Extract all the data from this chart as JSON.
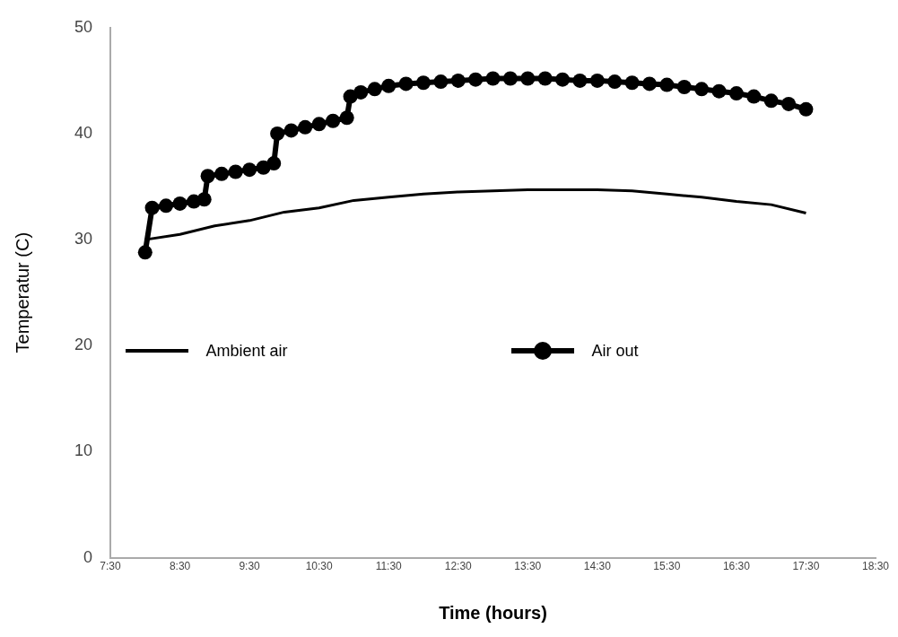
{
  "chart_data": {
    "type": "line",
    "xlabel": "Time (hours)",
    "ylabel": "Temperatur (C)",
    "xlim": [
      7.5,
      18.5
    ],
    "ylim": [
      0,
      50
    ],
    "xticks": [
      {
        "value": 7.5,
        "label": "7:30"
      },
      {
        "value": 8.5,
        "label": "8:30"
      },
      {
        "value": 9.5,
        "label": "9:30"
      },
      {
        "value": 10.5,
        "label": "10:30"
      },
      {
        "value": 11.5,
        "label": "11:30"
      },
      {
        "value": 12.5,
        "label": "12:30"
      },
      {
        "value": 13.5,
        "label": "13:30"
      },
      {
        "value": 14.5,
        "label": "14:30"
      },
      {
        "value": 15.5,
        "label": "15:30"
      },
      {
        "value": 16.5,
        "label": "16:30"
      },
      {
        "value": 17.5,
        "label": "17:30"
      },
      {
        "value": 18.5,
        "label": "18:30"
      }
    ],
    "yticks": [
      0,
      10,
      20,
      30,
      40,
      50
    ],
    "grid": false,
    "legend": "center",
    "series": [
      {
        "name": "Ambient air",
        "color": "#000000",
        "marker": "none",
        "x": [
          8.0,
          8.5,
          9.0,
          9.5,
          10.0,
          10.5,
          11.0,
          11.5,
          12.0,
          12.5,
          13.0,
          13.5,
          14.0,
          14.5,
          15.0,
          15.5,
          16.0,
          16.5,
          17.0,
          17.5
        ],
        "values": [
          30.0,
          30.5,
          31.3,
          31.8,
          32.6,
          33.0,
          33.7,
          34.0,
          34.3,
          34.5,
          34.6,
          34.7,
          34.7,
          34.7,
          34.6,
          34.3,
          34.0,
          33.6,
          33.3,
          32.5
        ]
      },
      {
        "name": "Air out",
        "color": "#000000",
        "marker": "circle",
        "x": [
          8.0,
          8.1,
          8.3,
          8.5,
          8.7,
          8.85,
          8.9,
          9.1,
          9.3,
          9.5,
          9.7,
          9.85,
          9.9,
          10.1,
          10.3,
          10.5,
          10.7,
          10.9,
          10.95,
          11.1,
          11.3,
          11.5,
          11.75,
          12.0,
          12.25,
          12.5,
          12.75,
          13.0,
          13.25,
          13.5,
          13.75,
          14.0,
          14.25,
          14.5,
          14.75,
          15.0,
          15.25,
          15.5,
          15.75,
          16.0,
          16.25,
          16.5,
          16.75,
          17.0,
          17.25,
          17.5
        ],
        "values": [
          28.8,
          33.0,
          33.2,
          33.4,
          33.6,
          33.8,
          36.0,
          36.2,
          36.4,
          36.6,
          36.8,
          37.2,
          40.0,
          40.3,
          40.6,
          40.9,
          41.2,
          41.5,
          43.5,
          43.9,
          44.2,
          44.5,
          44.7,
          44.8,
          44.9,
          45.0,
          45.1,
          45.2,
          45.2,
          45.2,
          45.2,
          45.1,
          45.0,
          45.0,
          44.9,
          44.8,
          44.7,
          44.6,
          44.4,
          44.2,
          44.0,
          43.8,
          43.5,
          43.1,
          42.8,
          42.3
        ]
      }
    ]
  }
}
